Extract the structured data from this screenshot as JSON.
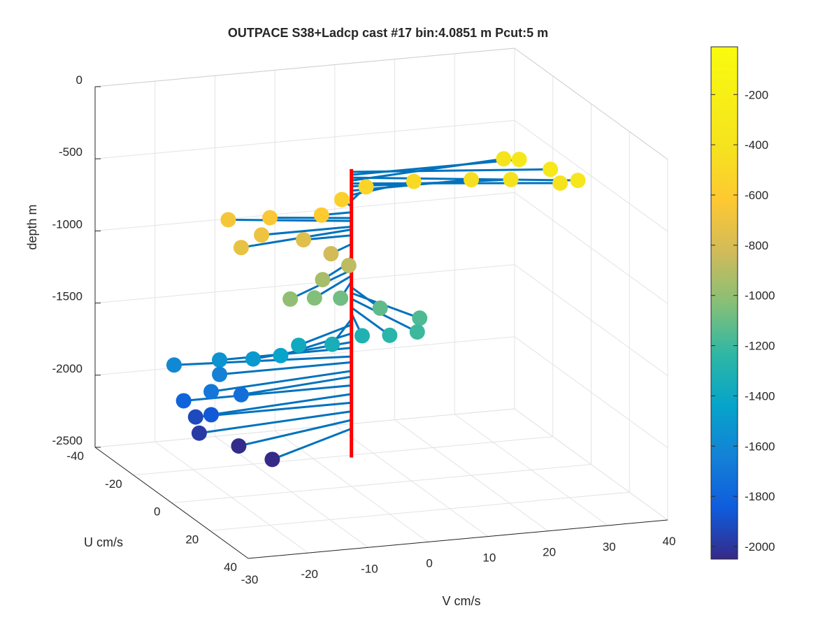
{
  "chart_data": {
    "type": "scatter3d",
    "title": "OUTPACE S38+Ladcp cast #17 bin:4.0851 m  Pcut:5 m",
    "xlabel": "V cm/s",
    "ylabel": "U cm/s",
    "zlabel": "depth m",
    "xlim": [
      -30,
      40
    ],
    "ylim": [
      -40,
      40
    ],
    "zlim": [
      -2500,
      0
    ],
    "xticks": [
      "-30",
      "-20",
      "-10",
      "0",
      "10",
      "20",
      "30",
      "40"
    ],
    "yticks": [
      "-40",
      "-20",
      "0",
      "20",
      "40"
    ],
    "zticks": [
      "-2500",
      "-2000",
      "-1500",
      "-1000",
      "-500",
      "0"
    ],
    "grid": true,
    "colorbar": {
      "ticks": [
        "-200",
        "-400",
        "-600",
        "-800",
        "-1000",
        "-1200",
        "-1400",
        "-1600",
        "-1800",
        "-2000"
      ],
      "range": [
        -2050,
        -10
      ],
      "colormap": "parula"
    },
    "profile_line": {
      "color": "#ff0000",
      "depth_range": [
        -2300,
        -300
      ]
    },
    "vector_color": "#0072bd",
    "points": [
      {
        "v": 30,
        "u": 10,
        "depth": -320
      },
      {
        "v": 28,
        "u": 0,
        "depth": -340
      },
      {
        "v": 33,
        "u": 15,
        "depth": -360
      },
      {
        "v": 27,
        "u": -5,
        "depth": -380
      },
      {
        "v": 31,
        "u": 12,
        "depth": -400
      },
      {
        "v": 25,
        "u": 5,
        "depth": -420
      },
      {
        "v": 20,
        "u": 0,
        "depth": -450
      },
      {
        "v": 12,
        "u": -5,
        "depth": -480
      },
      {
        "v": 5,
        "u": -8,
        "depth": -520
      },
      {
        "v": 0,
        "u": -5,
        "depth": -560
      },
      {
        "v": -5,
        "u": 0,
        "depth": -600
      },
      {
        "v": -12,
        "u": -5,
        "depth": -640
      },
      {
        "v": -18,
        "u": -8,
        "depth": -660
      },
      {
        "v": -15,
        "u": 0,
        "depth": -700
      },
      {
        "v": -20,
        "u": 5,
        "depth": -720
      },
      {
        "v": -8,
        "u": 0,
        "depth": -760
      },
      {
        "v": -5,
        "u": 5,
        "depth": -820
      },
      {
        "v": -3,
        "u": 8,
        "depth": -880
      },
      {
        "v": -8,
        "u": 10,
        "depth": -940
      },
      {
        "v": -15,
        "u": 15,
        "depth": -1000
      },
      {
        "v": -10,
        "u": 12,
        "depth": -1040
      },
      {
        "v": -5,
        "u": 10,
        "depth": -1080
      },
      {
        "v": 0,
        "u": 15,
        "depth": -1120
      },
      {
        "v": 5,
        "u": 20,
        "depth": -1160
      },
      {
        "v": 3,
        "u": 25,
        "depth": -1200
      },
      {
        "v": 0,
        "u": 20,
        "depth": -1260
      },
      {
        "v": -3,
        "u": 15,
        "depth": -1300
      },
      {
        "v": -8,
        "u": 15,
        "depth": -1340
      },
      {
        "v": -12,
        "u": 10,
        "depth": -1380
      },
      {
        "v": -15,
        "u": 10,
        "depth": -1440
      },
      {
        "v": -18,
        "u": 5,
        "depth": -1500
      },
      {
        "v": -22,
        "u": 0,
        "depth": -1540
      },
      {
        "v": -28,
        "u": -5,
        "depth": -1600
      },
      {
        "v": -22,
        "u": 0,
        "depth": -1640
      },
      {
        "v": -25,
        "u": 5,
        "depth": -1700
      },
      {
        "v": -20,
        "u": 5,
        "depth": -1740
      },
      {
        "v": -28,
        "u": 0,
        "depth": -1800
      },
      {
        "v": -25,
        "u": 5,
        "depth": -1860
      },
      {
        "v": -26,
        "u": 0,
        "depth": -1920
      },
      {
        "v": -27,
        "u": 5,
        "depth": -1980
      },
      {
        "v": -22,
        "u": 10,
        "depth": -2040
      },
      {
        "v": -18,
        "u": 15,
        "depth": -2100
      }
    ]
  }
}
